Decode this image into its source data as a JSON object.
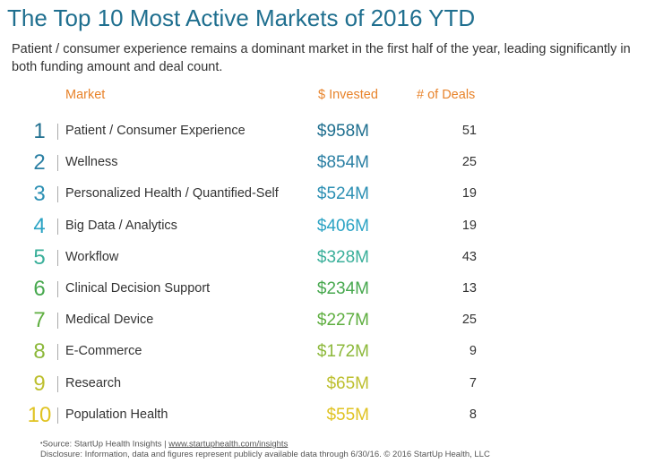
{
  "title": "The Top 10 Most Active Markets of 2016 YTD",
  "subtitle": "Patient / consumer experience remains a dominant market in the first half of the year, leading significantly in both  funding amount and deal count.",
  "headers": {
    "market": "Market",
    "invested": "$ Invested",
    "deals": "# of Deals"
  },
  "colors": {
    "title": "#1f6f8f",
    "header": "#e8832a"
  },
  "chart_data": {
    "type": "table",
    "columns": [
      "Market",
      "$ Invested",
      "# of Deals"
    ],
    "rows": [
      {
        "rank": "1",
        "market": "Patient /  Consumer Experience",
        "invested": "$958M",
        "invested_value": 958,
        "deals": "51",
        "color": "#1f6f8f"
      },
      {
        "rank": "2",
        "market": "Wellness",
        "invested": "$854M",
        "invested_value": 854,
        "deals": "25",
        "color": "#2a7fa3"
      },
      {
        "rank": "3",
        "market": "Personalized Health / Quantified-Self",
        "invested": "$524M",
        "invested_value": 524,
        "deals": "19",
        "color": "#2b8fb3"
      },
      {
        "rank": "4",
        "market": "Big Data / Analytics",
        "invested": "$406M",
        "invested_value": 406,
        "deals": "19",
        "color": "#2ba3c4"
      },
      {
        "rank": "5",
        "market": "Workflow",
        "invested": "$328M",
        "invested_value": 328,
        "deals": "43",
        "color": "#3aaf9a"
      },
      {
        "rank": "6",
        "market": "Clinical Decision Support",
        "invested": "$234M",
        "invested_value": 234,
        "deals": "13",
        "color": "#47a84e"
      },
      {
        "rank": "7",
        "market": "Medical Device",
        "invested": "$227M",
        "invested_value": 227,
        "deals": "25",
        "color": "#5eae3f"
      },
      {
        "rank": "8",
        "market": "E-Commerce",
        "invested": "$172M",
        "invested_value": 172,
        "deals": "9",
        "color": "#8cb83a"
      },
      {
        "rank": "9",
        "market": "Research",
        "invested": "$65M",
        "invested_value": 65,
        "deals": "7",
        "color": "#bdbf2e"
      },
      {
        "rank": "10",
        "market": "Population Health",
        "invested": "$55M",
        "invested_value": 55,
        "deals": "8",
        "color": "#e0c322"
      }
    ]
  },
  "footer": {
    "bullet": "•",
    "source_prefix": "Source: StartUp Health Insights | ",
    "source_link": "www.startuphealth.com/insights",
    "disclosure": "Disclosure: Information, data and figures represent publicly available data through 6/30/16. © 2016 StartUp Health, LLC"
  }
}
